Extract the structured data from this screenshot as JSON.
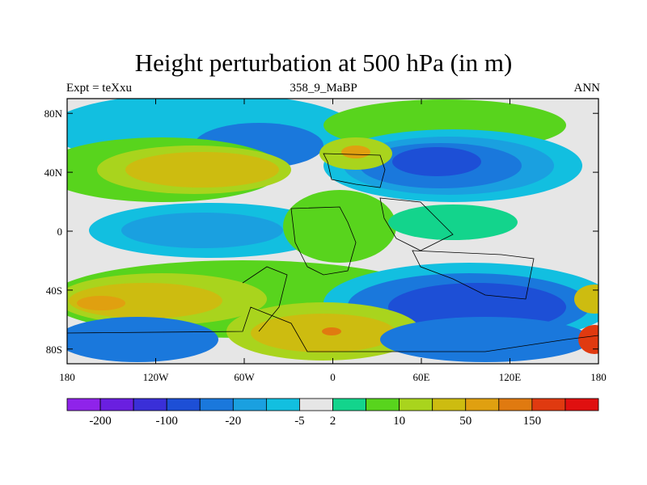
{
  "chart_data": {
    "type": "heatmap",
    "title": "Height perturbation at 500 hPa (in m)",
    "subtitle_left": "Expt = teXxu",
    "subtitle_center": "358_9_MaBP",
    "subtitle_right": "ANN",
    "x_ticks": [
      "180",
      "120W",
      "60W",
      "0",
      "60E",
      "120E",
      "180"
    ],
    "x_tick_values": [
      -180,
      -120,
      -60,
      0,
      60,
      120,
      180
    ],
    "y_ticks": [
      "80N",
      "40N",
      "0",
      "40S",
      "80S"
    ],
    "y_tick_values": [
      80,
      40,
      0,
      -40,
      -80
    ],
    "xlim": [
      -180,
      180
    ],
    "ylim": [
      -90,
      90
    ],
    "colorbar": {
      "levels": [
        "-200",
        "-100",
        "-20",
        "-5",
        "2",
        "10",
        "50",
        "150"
      ],
      "colors": [
        "#8f23ea",
        "#6a1fe0",
        "#3a2fd8",
        "#1d4fd6",
        "#1a78dc",
        "#1aa0e0",
        "#12bfe0",
        "#e6e6e6",
        "#13d48c",
        "#58d41d",
        "#a9d41d",
        "#cdbc10",
        "#e0a010",
        "#e07a10",
        "#e03a10",
        "#e01010"
      ],
      "label_positions": [
        1,
        3,
        5,
        7,
        8,
        10,
        12,
        14
      ]
    }
  }
}
